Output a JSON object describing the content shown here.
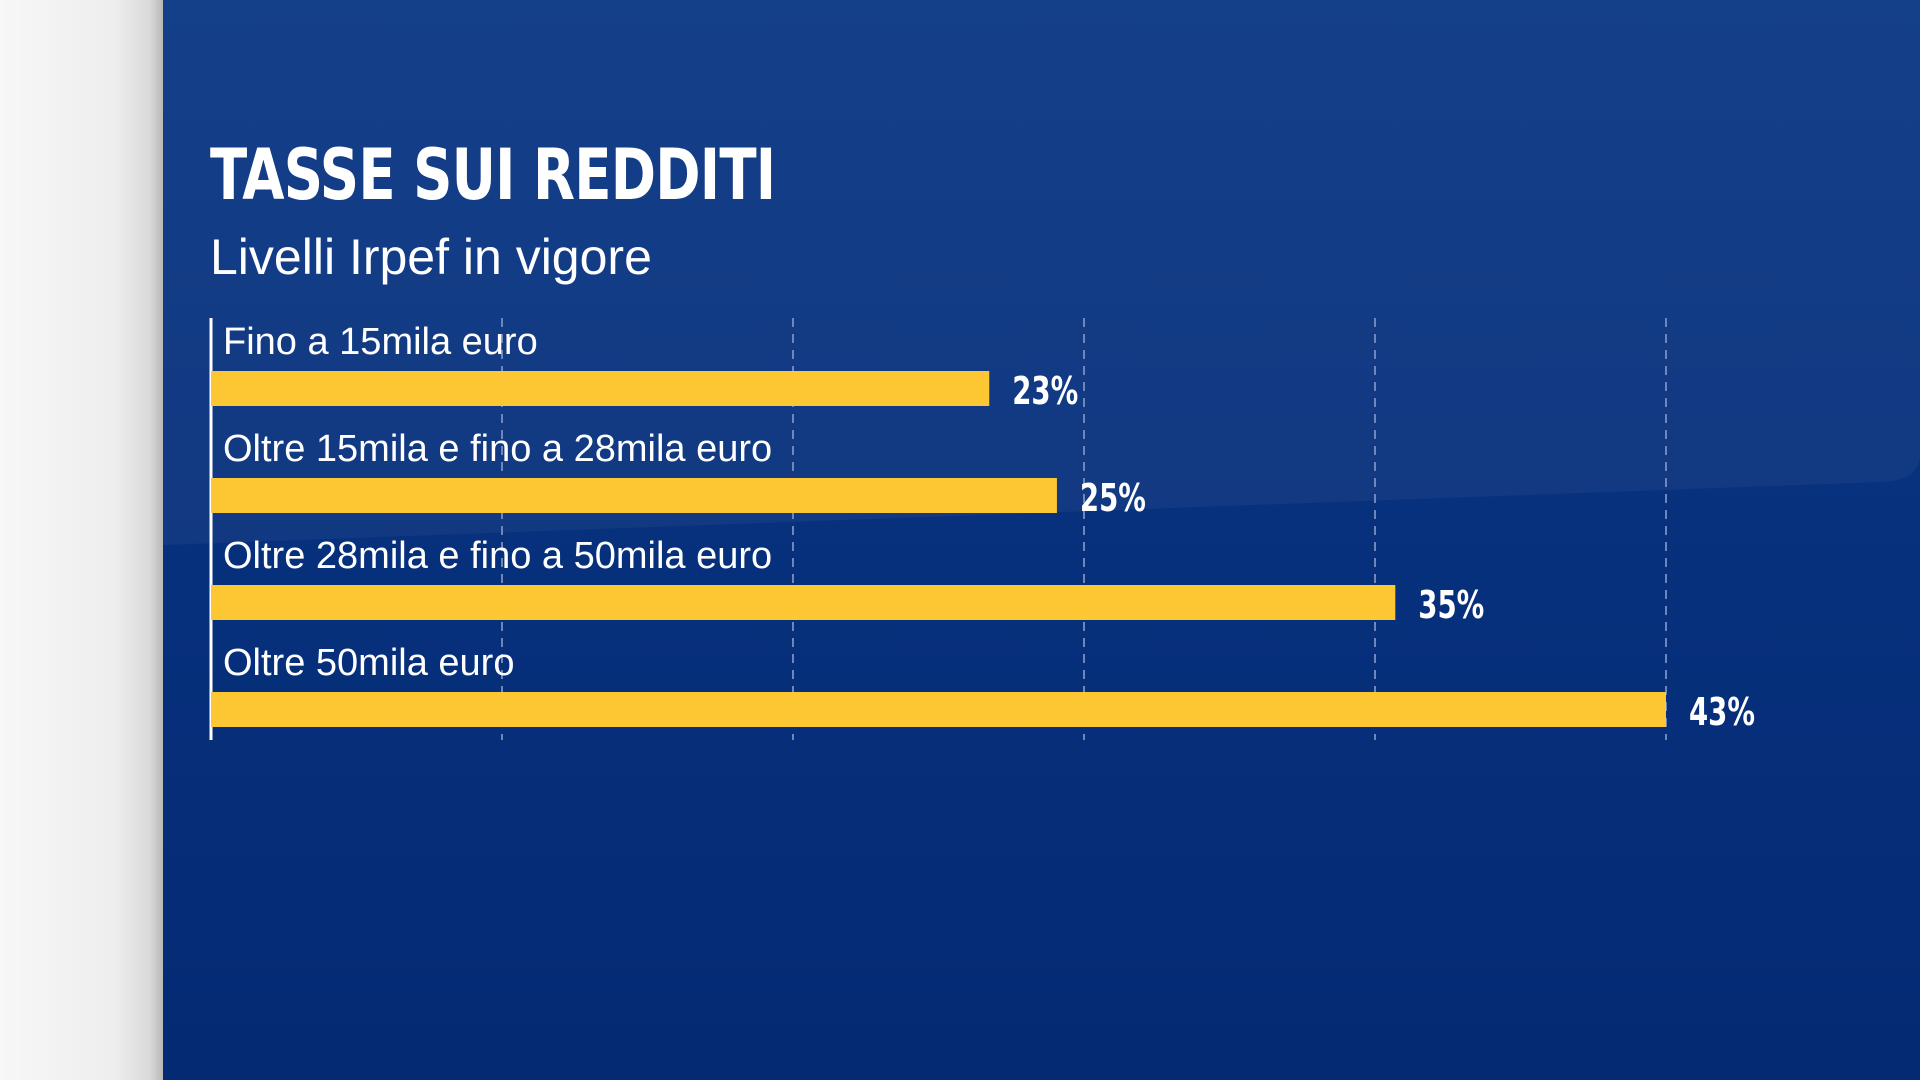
{
  "colors": {
    "background": "#06307c",
    "bar": "#fdc633",
    "text": "#ffffff",
    "grid": "#6f86b8",
    "side_panel": "#eeeeee"
  },
  "chart_data": {
    "type": "bar",
    "orientation": "horizontal",
    "title": "TASSE SUI REDDITI",
    "subtitle": "Livelli Irpef in vigore",
    "categories": [
      "Fino a 15mila euro",
      "Oltre 15mila e fino a 28mila euro",
      "Oltre 28mila e fino a 50mila euro",
      "Oltre 50mila euro"
    ],
    "values": [
      23,
      25,
      35,
      43
    ],
    "value_labels": [
      "23%",
      "25%",
      "35%",
      "43%"
    ],
    "xlim": [
      0,
      43
    ],
    "grid": "vertical-dashed",
    "legend": "none"
  }
}
